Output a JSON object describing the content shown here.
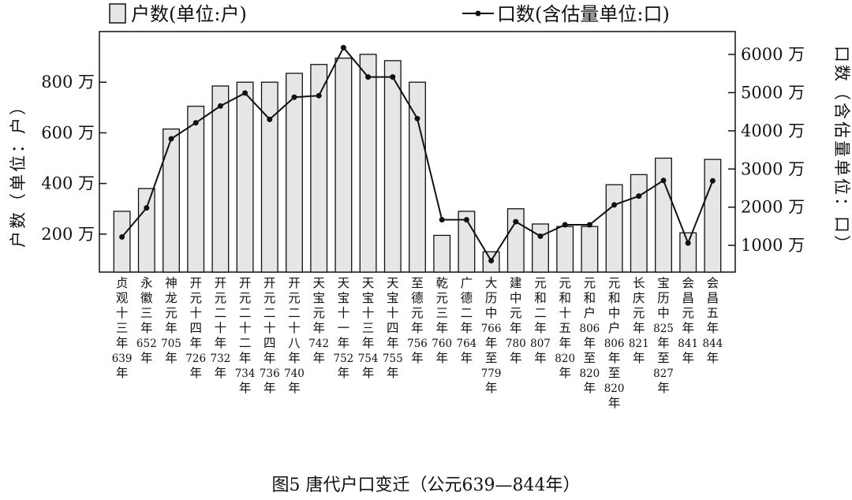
{
  "chart_data": {
    "type": "bar",
    "caption": "图5   唐代户口变迁（公元639—844年）",
    "categories": [
      "贞观十三年639年",
      "永徽三年652年",
      "神龙元年705年",
      "开元十四年726年",
      "开元二十年732年",
      "开元二十二年734年",
      "开元二十四年736年",
      "开元二十八年740年",
      "天宝元年742年",
      "天宝十一年752年",
      "天宝十三年754年",
      "天宝十四年755年",
      "至德元年756年",
      "乾元三年760年",
      "广德二年764年",
      "大历中766年至779年",
      "建中元年780年",
      "元和二年807年",
      "元和十五年820年",
      "元和户806年至820年",
      "元和中户806年至820年",
      "长庆元年821年",
      "宝历中825年至827年",
      "会昌元年841年",
      "会昌五年844年"
    ],
    "series": [
      {
        "name": "户数（单位：户）",
        "type": "bar",
        "axis": "left",
        "values": [
          290,
          380,
          615,
          705,
          785,
          800,
          800,
          835,
          870,
          895,
          910,
          885,
          800,
          195,
          290,
          130,
          300,
          240,
          230,
          230,
          395,
          435,
          500,
          205,
          495
        ]
      },
      {
        "name": "口数（含估量单位：口）",
        "type": "line",
        "axis": "right",
        "values": [
          1220,
          1980,
          3790,
          4210,
          4650,
          4990,
          4300,
          4880,
          4920,
          6180,
          5410,
          5410,
          4320,
          1670,
          1670,
          600,
          1620,
          1240,
          1540,
          1540,
          2060,
          2290,
          2700,
          1060,
          2690
        ]
      }
    ],
    "left_axis": {
      "label": "户数（单位：户）",
      "ticks": [
        200,
        400,
        600,
        800
      ],
      "tick_labels": [
        "200 万",
        "400 万",
        "600 万",
        "800 万"
      ],
      "unit_note": "万",
      "ylim": [
        50,
        1000
      ]
    },
    "right_axis": {
      "label": "口数（含估量单位：口）",
      "ticks": [
        1000,
        2000,
        3000,
        4000,
        5000,
        6000
      ],
      "tick_labels": [
        "1000 万",
        "2000 万",
        "3000 万",
        "4000 万",
        "5000 万",
        "6000 万"
      ],
      "ylim": [
        300,
        6600
      ]
    },
    "grid": false,
    "legend": {
      "placement": "top",
      "bar_label": "户数(单位:户)",
      "line_label": "口数(含估量单位:口)",
      "bar_color": "#e6e6e6",
      "line_color": "#111111"
    }
  }
}
